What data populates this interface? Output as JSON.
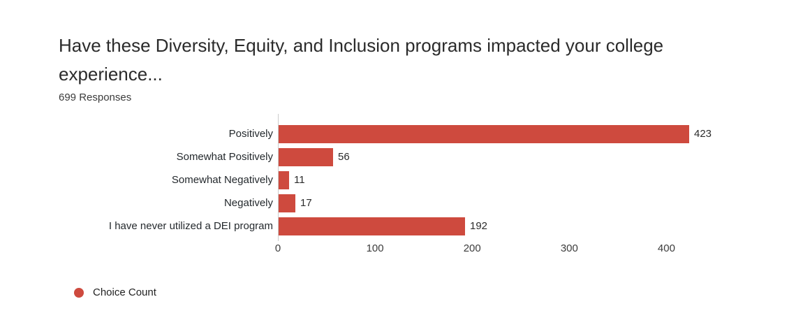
{
  "chart": {
    "title": "Have these Diversity, Equity, and Inclusion programs impacted your college experience...",
    "subtitle": "699 Responses",
    "legend_label": "Choice Count"
  },
  "chart_data": {
    "type": "bar",
    "orientation": "horizontal",
    "title": "Have these Diversity, Equity, and Inclusion programs impacted your college experience...",
    "subtitle": "699 Responses",
    "categories": [
      "Positively",
      "Somewhat Positively",
      "Somewhat Negatively",
      "Negatively",
      "I have never utilized a DEI program"
    ],
    "values": [
      423,
      56,
      11,
      17,
      192
    ],
    "series_name": "Choice Count",
    "xlim": [
      0,
      450
    ],
    "xticks": [
      0,
      100,
      200,
      300,
      400
    ],
    "grid": false,
    "legend_position": "bottom-left",
    "bar_color": "#ce4a3e",
    "axis_line_color": "#cccccc"
  }
}
